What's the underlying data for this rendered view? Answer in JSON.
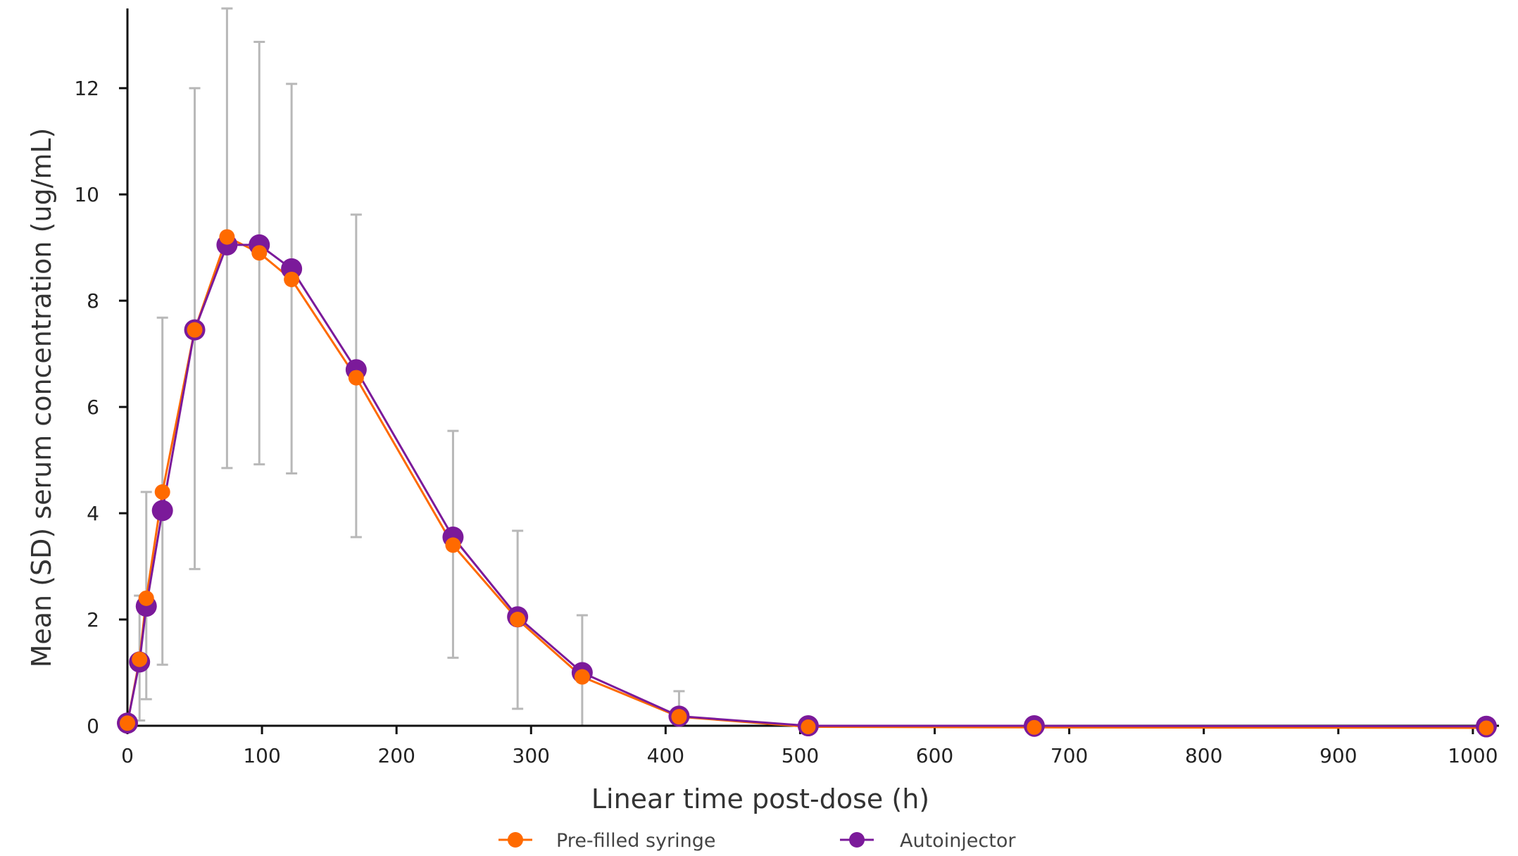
{
  "chart_data": {
    "type": "line",
    "title": "",
    "xlabel": "Linear time post-dose (h)",
    "ylabel": "Mean (SD) serum concentration (ug/mL)",
    "xlim": [
      0,
      1010
    ],
    "ylim": [
      0,
      13.5
    ],
    "xticks": [
      0,
      100,
      200,
      300,
      400,
      500,
      600,
      700,
      800,
      900,
      1000
    ],
    "yticks": [
      0,
      2,
      4,
      6,
      8,
      10,
      12
    ],
    "grid": false,
    "legend_position": "bottom",
    "series": [
      {
        "name": "Pre-filled syringe",
        "color": "#ff6a00",
        "x": [
          0,
          9,
          14,
          26,
          50,
          74,
          98,
          122,
          170,
          242,
          290,
          338,
          410,
          506,
          674,
          1010
        ],
        "y": [
          0.05,
          1.25,
          2.4,
          4.4,
          7.45,
          9.2,
          8.9,
          8.4,
          6.55,
          3.4,
          2.0,
          0.92,
          0.17,
          -0.02,
          -0.03,
          -0.04
        ]
      },
      {
        "name": "Autoinjector",
        "color": "#7b1a9a",
        "x": [
          0,
          9,
          14,
          26,
          50,
          74,
          98,
          122,
          170,
          242,
          290,
          338,
          410,
          506,
          674,
          1010
        ],
        "y": [
          0.05,
          1.2,
          2.25,
          4.05,
          7.45,
          9.05,
          9.05,
          8.6,
          6.7,
          3.55,
          2.05,
          1.0,
          0.18,
          0.0,
          0.0,
          -0.01
        ]
      }
    ],
    "error_bars": {
      "color": "#b8b8b8",
      "x": [
        9,
        14,
        26,
        50,
        74,
        98,
        122,
        170,
        242,
        290,
        338,
        410
      ],
      "lower": [
        0.1,
        0.5,
        1.15,
        2.95,
        4.85,
        4.92,
        4.75,
        3.55,
        1.28,
        0.32,
        0.0,
        0.0
      ],
      "upper": [
        2.45,
        4.4,
        7.68,
        12.0,
        13.5,
        12.87,
        12.08,
        9.62,
        5.55,
        3.67,
        2.08,
        0.65
      ]
    }
  }
}
